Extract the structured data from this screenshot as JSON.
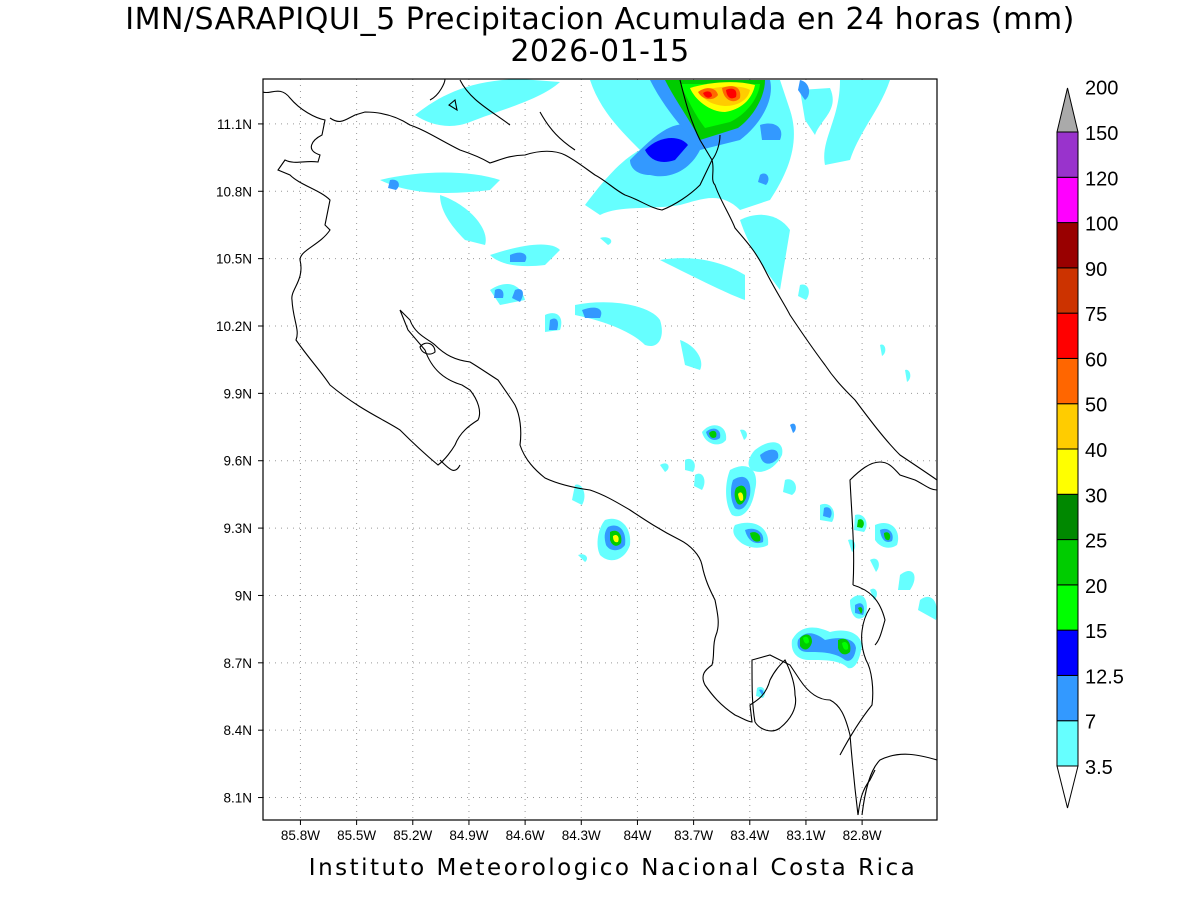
{
  "title": {
    "line1": "IMN/SARAPIQUI_5 Precipitacion Acumulada en 24 horas (mm)",
    "line2": "2026-01-15"
  },
  "footer": "Instituto Meteorologico Nacional Costa Rica",
  "map": {
    "lon_range": [
      -86.0,
      -82.4
    ],
    "lat_range": [
      8.0,
      11.3
    ],
    "lon_ticks": [
      "85.8W",
      "85.5W",
      "85.2W",
      "84.9W",
      "84.6W",
      "84.3W",
      "84W",
      "83.7W",
      "83.4W",
      "83.1W",
      "82.8W"
    ],
    "lat_ticks": [
      "11.1N",
      "10.8N",
      "10.5N",
      "10.2N",
      "9.9N",
      "9.6N",
      "9.3N",
      "9N",
      "8.7N",
      "8.4N",
      "8.1N"
    ],
    "grid": "dotted"
  },
  "colorbar": {
    "levels": [
      "3.5",
      "7",
      "12.5",
      "15",
      "20",
      "25",
      "30",
      "40",
      "50",
      "60",
      "75",
      "90",
      "100",
      "120",
      "150",
      "200"
    ],
    "colors": [
      "#66ffff",
      "#3399ff",
      "#0000ff",
      "#00ff00",
      "#00cc00",
      "#008800",
      "#ffff00",
      "#ffcc00",
      "#ff6600",
      "#ff0000",
      "#cc3300",
      "#990000",
      "#ff00ff",
      "#9933cc",
      "#f4f4f4",
      "#aaaaaa"
    ]
  }
}
